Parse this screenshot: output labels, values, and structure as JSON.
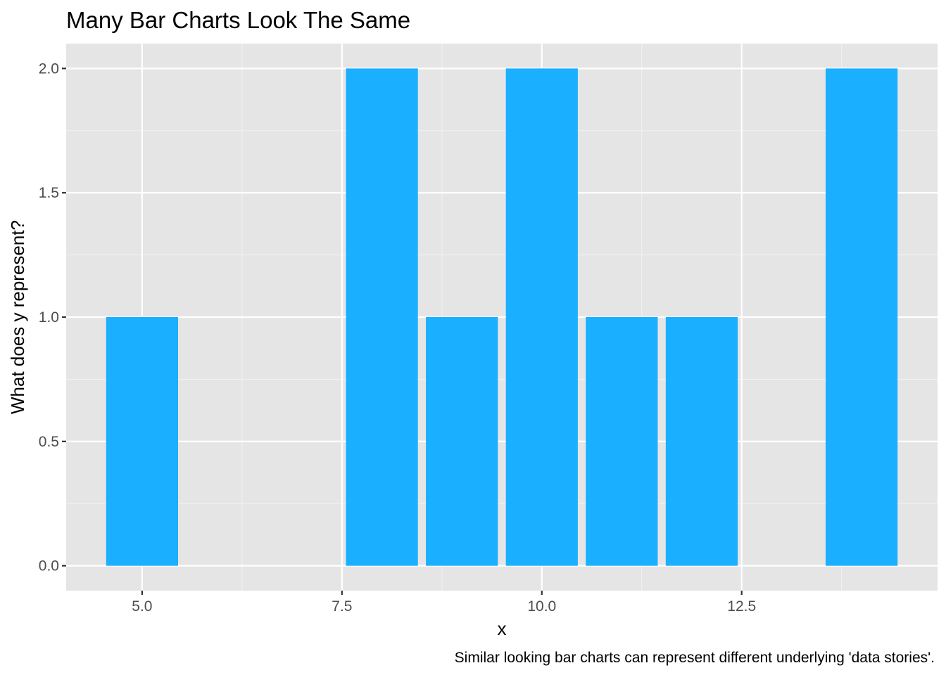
{
  "chart_data": {
    "type": "bar",
    "title": "Many Bar Charts Look The Same",
    "xlabel": "x",
    "ylabel": "What does y represent?",
    "caption": "Similar looking bar charts can represent different underlying 'data stories'.",
    "x": [
      5,
      8,
      9,
      10,
      11,
      12,
      14
    ],
    "values": [
      1,
      2,
      1,
      2,
      1,
      1,
      2
    ],
    "bar_width": 0.9,
    "xlim": [
      4.05,
      14.95
    ],
    "ylim": [
      -0.1,
      2.1
    ],
    "x_ticks": [
      {
        "value": 5,
        "label": "5.0"
      },
      {
        "value": 7.5,
        "label": "7.5"
      },
      {
        "value": 10,
        "label": "10.0"
      },
      {
        "value": 12.5,
        "label": "12.5"
      }
    ],
    "y_ticks": [
      {
        "value": 0,
        "label": "0.0"
      },
      {
        "value": 0.5,
        "label": "0.5"
      },
      {
        "value": 1,
        "label": "1.0"
      },
      {
        "value": 1.5,
        "label": "1.5"
      },
      {
        "value": 2,
        "label": "2.0"
      }
    ],
    "grid": true,
    "legend": "none",
    "colors": {
      "bar": "#1AB0FF",
      "panel": "#E5E5E5",
      "grid_major": "#FFFFFF",
      "grid_minor": "#F2F2F2",
      "tick": "#333333"
    }
  }
}
